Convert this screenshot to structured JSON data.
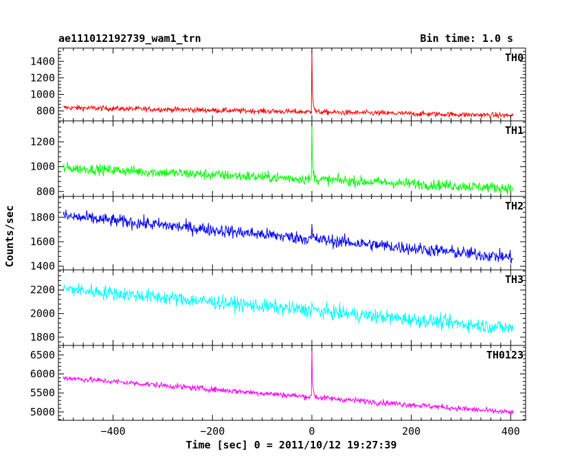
{
  "header": {
    "title": "ae111012192739_wam1_trn",
    "bin_time": "Bin time: 1.0 s"
  },
  "chart_data": {
    "type": "line",
    "title": "ae111012192739_wam1_trn",
    "xlabel": "Time [sec] 0 = 2011/10/12 19:27:39",
    "ylabel": "Counts/sec",
    "xlim": [
      -510,
      430
    ],
    "xticks": [
      -400,
      -200,
      0,
      200,
      400
    ],
    "xtick_labels": [
      "−400",
      "−200",
      "0",
      "200",
      "400"
    ],
    "grid": false,
    "legend": "none",
    "panels": [
      {
        "name": "TH0",
        "color": "#ff0000",
        "ylim": [
          680,
          1560
        ],
        "yticks": [
          800,
          1000,
          1200,
          1400
        ],
        "xstart": -500,
        "xend": 405,
        "level_start": 840,
        "level_end": 745,
        "noise": 32,
        "peak_x": 0,
        "peak_value": 1580
      },
      {
        "name": "TH1",
        "color": "#00ff00",
        "ylim": [
          760,
          1370
        ],
        "yticks": [
          800,
          1000,
          1200
        ],
        "xstart": -500,
        "xend": 405,
        "level_start": 990,
        "level_end": 825,
        "noise": 42,
        "peak_x": 0,
        "peak_value": 1360
      },
      {
        "name": "TH2",
        "color": "#0000ff",
        "ylim": [
          1370,
          1970
        ],
        "yticks": [
          1400,
          1600,
          1800
        ],
        "xstart": -500,
        "xend": 405,
        "level_start": 1810,
        "level_end": 1470,
        "noise": 52,
        "peak_x": 0,
        "peak_value": 1720
      },
      {
        "name": "TH3",
        "color": "#00ffff",
        "ylim": [
          1730,
          2370
        ],
        "yticks": [
          1800,
          2000,
          2200
        ],
        "xstart": -500,
        "xend": 405,
        "level_start": 2210,
        "level_end": 1875,
        "noise": 60,
        "peak_x": 0,
        "peak_value": 2120
      },
      {
        "name": "TH0123",
        "color": "#ff00ff",
        "ylim": [
          4780,
          6750
        ],
        "yticks": [
          5000,
          5500,
          6000,
          6500
        ],
        "xstart": -500,
        "xend": 405,
        "level_start": 5900,
        "level_end": 4980,
        "noise": 75,
        "peak_x": 0,
        "peak_value": 6750
      }
    ]
  }
}
